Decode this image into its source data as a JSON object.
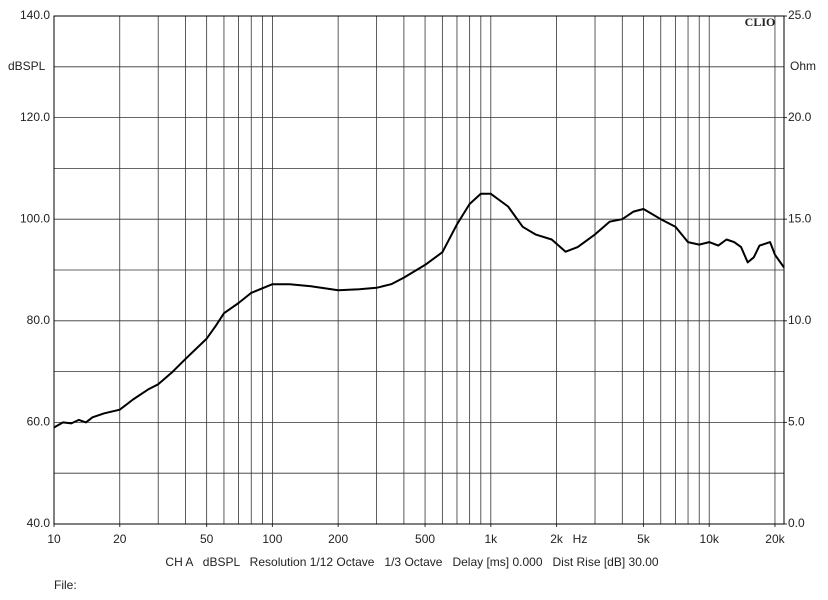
{
  "chart_data": {
    "type": "line",
    "brand": "CLIO",
    "ylabel": "dBSPL",
    "y2label": "Ohm",
    "xunit": "Hz",
    "footer": "CH A   dBSPL   Resolution 1/12 Octave   1/3 Octave   Delay [ms] 0.000   Dist Rise [dB] 30.00",
    "file_label": "File:",
    "log_x": true,
    "xlim": [
      10,
      22000
    ],
    "xticks": [
      10,
      20,
      50,
      100,
      200,
      500,
      {
        "value": 1000,
        "label": "1k"
      },
      {
        "value": 2000,
        "label": "2k"
      },
      {
        "value": 5000,
        "label": "5k"
      },
      {
        "value": 10000,
        "label": "10k"
      },
      {
        "value": 20000,
        "label": "20k"
      }
    ],
    "xgrid": [
      10,
      20,
      30,
      40,
      50,
      60,
      70,
      80,
      90,
      100,
      200,
      300,
      400,
      500,
      600,
      700,
      800,
      900,
      1000,
      2000,
      3000,
      4000,
      5000,
      6000,
      7000,
      8000,
      9000,
      10000,
      20000
    ],
    "ylim": [
      40,
      140
    ],
    "yticks": [
      {
        "value": 40,
        "label": "40.0"
      },
      {
        "value": 60,
        "label": "60.0"
      },
      {
        "value": 80,
        "label": "80.0"
      },
      {
        "value": 100,
        "label": "100.0"
      },
      {
        "value": 120,
        "label": "120.0"
      },
      {
        "value": 140,
        "label": "140.0"
      }
    ],
    "ygrid": [
      50,
      70,
      90,
      110,
      130
    ],
    "y2lim": [
      0,
      25
    ],
    "y2ticks": [
      {
        "value": 0,
        "label": "0.0"
      },
      {
        "value": 5,
        "label": "5.0"
      },
      {
        "value": 10,
        "label": "10.0"
      },
      {
        "value": 15,
        "label": "15.0"
      },
      {
        "value": 20,
        "label": "20.0"
      },
      {
        "value": 25,
        "label": "25.0"
      }
    ],
    "series": [
      {
        "name": "dBSPL",
        "color": "#000000",
        "x": [
          10,
          11,
          12,
          13,
          14,
          15,
          17,
          20,
          23,
          27,
          30,
          35,
          40,
          50,
          55,
          60,
          70,
          80,
          100,
          120,
          150,
          200,
          250,
          300,
          350,
          400,
          500,
          600,
          700,
          800,
          900,
          1000,
          1200,
          1400,
          1600,
          1900,
          2200,
          2500,
          3000,
          3500,
          4000,
          4500,
          5000,
          6000,
          7000,
          8000,
          9000,
          10000,
          11000,
          12000,
          13000,
          14000,
          15000,
          16000,
          17000,
          19000,
          20000,
          22000
        ],
        "values": [
          59,
          60,
          59.8,
          60.5,
          60,
          61,
          61.8,
          62.5,
          64.5,
          66.5,
          67.5,
          70,
          72.5,
          76.5,
          79,
          81.5,
          83.5,
          85.5,
          87.2,
          87.2,
          86.8,
          86,
          86.2,
          86.5,
          87.2,
          88.5,
          91,
          93.5,
          99,
          103,
          105,
          105,
          102.5,
          98.5,
          97,
          96,
          93.6,
          94.5,
          97,
          99.5,
          100,
          101.5,
          102,
          100,
          98.5,
          95.5,
          95,
          95.5,
          94.8,
          96,
          95.5,
          94.5,
          91.5,
          92.5,
          94.8,
          95.5,
          93,
          90.5
        ]
      }
    ]
  }
}
